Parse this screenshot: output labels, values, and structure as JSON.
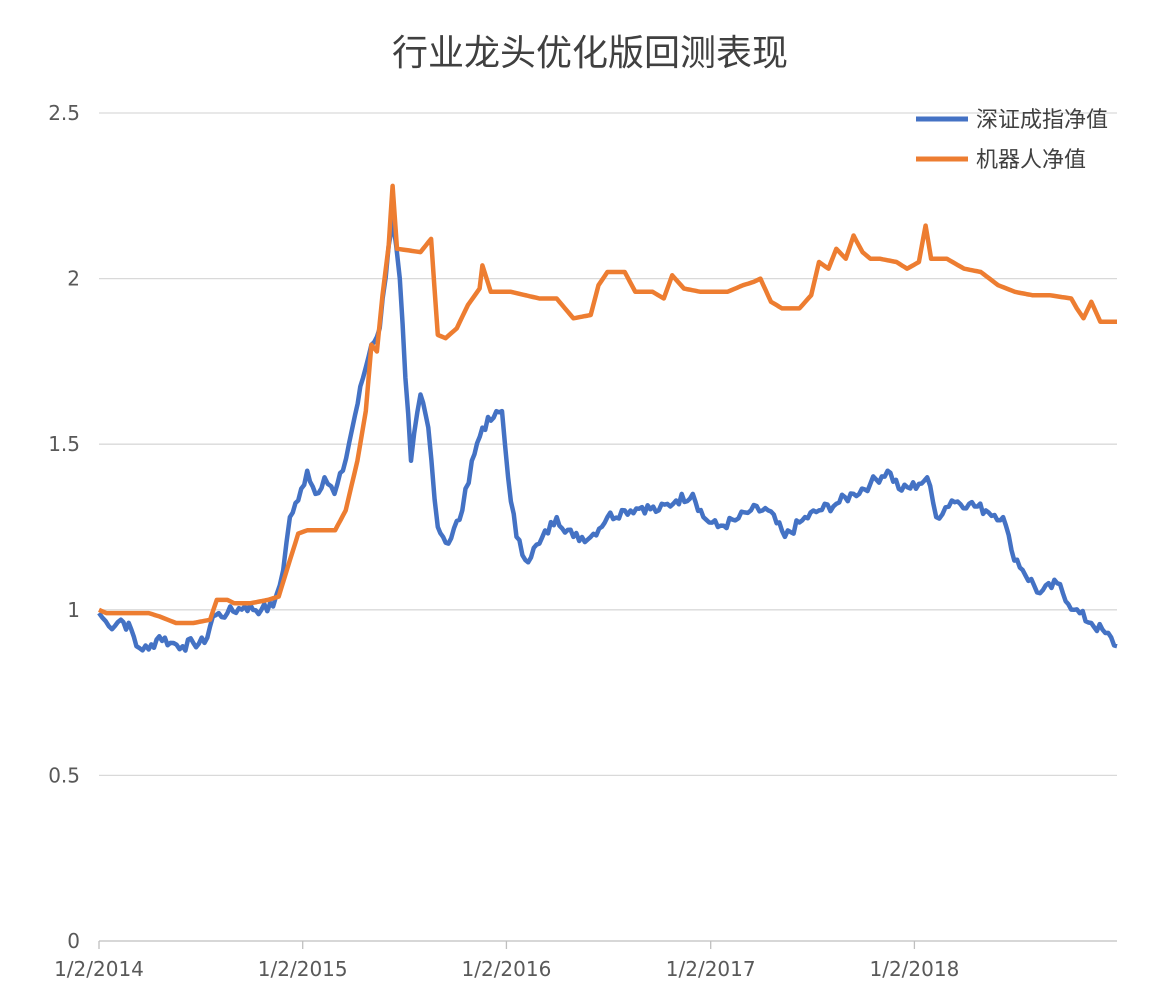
{
  "chart_data": {
    "type": "line",
    "title": "行业龙头优化版回测表现",
    "xlabel": "",
    "ylabel": "",
    "x_range": [
      "2014-01-02",
      "2018-12-31"
    ],
    "x_ticks": [
      "1/2/2014",
      "1/2/2015",
      "1/2/2016",
      "1/2/2017",
      "1/2/2018"
    ],
    "ylim": [
      0,
      2.5
    ],
    "y_ticks": [
      "0",
      "0.5",
      "1",
      "1.5",
      "2",
      "2.5"
    ],
    "grid": true,
    "legend_position": "top-right",
    "series": [
      {
        "name": "深证成指净值",
        "color": "#4472c4",
        "points": [
          [
            "2014-01-02",
            0.99
          ],
          [
            "2014-01-20",
            0.95
          ],
          [
            "2014-02-10",
            0.97
          ],
          [
            "2014-03-01",
            0.94
          ],
          [
            "2014-03-10",
            0.89
          ],
          [
            "2014-04-01",
            0.88
          ],
          [
            "2014-04-20",
            0.92
          ],
          [
            "2014-05-10",
            0.9
          ],
          [
            "2014-06-01",
            0.89
          ],
          [
            "2014-06-20",
            0.9
          ],
          [
            "2014-07-10",
            0.9
          ],
          [
            "2014-07-25",
            0.98
          ],
          [
            "2014-08-20",
            0.99
          ],
          [
            "2014-09-20",
            1.01
          ],
          [
            "2014-10-20",
            1.0
          ],
          [
            "2014-11-10",
            1.01
          ],
          [
            "2014-11-28",
            1.12
          ],
          [
            "2014-12-10",
            1.28
          ],
          [
            "2014-12-25",
            1.33
          ],
          [
            "2015-01-10",
            1.42
          ],
          [
            "2015-01-25",
            1.35
          ],
          [
            "2015-02-10",
            1.4
          ],
          [
            "2015-02-28",
            1.35
          ],
          [
            "2015-03-15",
            1.42
          ],
          [
            "2015-04-01",
            1.55
          ],
          [
            "2015-04-20",
            1.7
          ],
          [
            "2015-05-05",
            1.8
          ],
          [
            "2015-05-20",
            1.85
          ],
          [
            "2015-06-05",
            2.1
          ],
          [
            "2015-06-12",
            2.18
          ],
          [
            "2015-06-25",
            2.0
          ],
          [
            "2015-07-05",
            1.7
          ],
          [
            "2015-07-15",
            1.45
          ],
          [
            "2015-08-01",
            1.65
          ],
          [
            "2015-08-15",
            1.55
          ],
          [
            "2015-09-01",
            1.25
          ],
          [
            "2015-09-20",
            1.2
          ],
          [
            "2015-10-15",
            1.3
          ],
          [
            "2015-11-01",
            1.45
          ],
          [
            "2015-11-20",
            1.55
          ],
          [
            "2015-12-10",
            1.58
          ],
          [
            "2015-12-25",
            1.6
          ],
          [
            "2016-01-05",
            1.4
          ],
          [
            "2016-01-20",
            1.22
          ],
          [
            "2016-02-05",
            1.15
          ],
          [
            "2016-03-01",
            1.2
          ],
          [
            "2016-04-01",
            1.28
          ],
          [
            "2016-05-01",
            1.22
          ],
          [
            "2016-06-01",
            1.22
          ],
          [
            "2016-07-01",
            1.28
          ],
          [
            "2016-08-01",
            1.3
          ],
          [
            "2016-09-01",
            1.31
          ],
          [
            "2016-10-01",
            1.3
          ],
          [
            "2016-11-01",
            1.33
          ],
          [
            "2016-12-01",
            1.35
          ],
          [
            "2016-12-20",
            1.28
          ],
          [
            "2017-01-15",
            1.25
          ],
          [
            "2017-02-15",
            1.27
          ],
          [
            "2017-03-15",
            1.3
          ],
          [
            "2017-04-15",
            1.3
          ],
          [
            "2017-05-15",
            1.22
          ],
          [
            "2017-06-15",
            1.27
          ],
          [
            "2017-07-15",
            1.3
          ],
          [
            "2017-08-15",
            1.32
          ],
          [
            "2017-09-15",
            1.35
          ],
          [
            "2017-10-15",
            1.38
          ],
          [
            "2017-11-15",
            1.42
          ],
          [
            "2017-12-10",
            1.36
          ],
          [
            "2018-01-10",
            1.38
          ],
          [
            "2018-01-25",
            1.4
          ],
          [
            "2018-02-10",
            1.28
          ],
          [
            "2018-03-10",
            1.33
          ],
          [
            "2018-04-10",
            1.32
          ],
          [
            "2018-05-10",
            1.3
          ],
          [
            "2018-06-10",
            1.28
          ],
          [
            "2018-06-25",
            1.18
          ],
          [
            "2018-07-15",
            1.12
          ],
          [
            "2018-08-15",
            1.05
          ],
          [
            "2018-09-15",
            1.08
          ],
          [
            "2018-10-15",
            1.0
          ],
          [
            "2018-11-15",
            0.96
          ],
          [
            "2018-12-10",
            0.93
          ],
          [
            "2018-12-31",
            0.89
          ]
        ]
      },
      {
        "name": "机器人净值",
        "color": "#ed7d31",
        "points": [
          [
            "2014-01-02",
            1.0
          ],
          [
            "2014-01-15",
            0.99
          ],
          [
            "2014-04-01",
            0.99
          ],
          [
            "2014-04-20",
            0.98
          ],
          [
            "2014-05-20",
            0.96
          ],
          [
            "2014-06-20",
            0.96
          ],
          [
            "2014-07-20",
            0.97
          ],
          [
            "2014-08-01",
            1.03
          ],
          [
            "2014-08-20",
            1.03
          ],
          [
            "2014-09-01",
            1.02
          ],
          [
            "2014-10-01",
            1.02
          ],
          [
            "2014-11-01",
            1.03
          ],
          [
            "2014-11-20",
            1.04
          ],
          [
            "2014-12-10",
            1.15
          ],
          [
            "2014-12-25",
            1.23
          ],
          [
            "2015-01-10",
            1.24
          ],
          [
            "2015-03-01",
            1.24
          ],
          [
            "2015-03-20",
            1.3
          ],
          [
            "2015-04-10",
            1.45
          ],
          [
            "2015-04-25",
            1.6
          ],
          [
            "2015-05-05",
            1.8
          ],
          [
            "2015-05-15",
            1.78
          ],
          [
            "2015-05-25",
            1.95
          ],
          [
            "2015-06-05",
            2.1
          ],
          [
            "2015-06-12",
            2.28
          ],
          [
            "2015-06-20",
            2.09
          ],
          [
            "2015-08-01",
            2.08
          ],
          [
            "2015-08-20",
            2.12
          ],
          [
            "2015-09-01",
            1.83
          ],
          [
            "2015-09-15",
            1.82
          ],
          [
            "2015-10-05",
            1.85
          ],
          [
            "2015-10-25",
            1.92
          ],
          [
            "2015-11-15",
            1.97
          ],
          [
            "2015-11-20",
            2.04
          ],
          [
            "2015-12-05",
            1.96
          ],
          [
            "2016-01-10",
            1.96
          ],
          [
            "2016-03-01",
            1.94
          ],
          [
            "2016-04-01",
            1.94
          ],
          [
            "2016-05-01",
            1.88
          ],
          [
            "2016-06-01",
            1.89
          ],
          [
            "2016-06-15",
            1.98
          ],
          [
            "2016-07-01",
            2.02
          ],
          [
            "2016-08-01",
            2.02
          ],
          [
            "2016-08-20",
            1.96
          ],
          [
            "2016-09-20",
            1.96
          ],
          [
            "2016-10-10",
            1.94
          ],
          [
            "2016-10-25",
            2.01
          ],
          [
            "2016-11-15",
            1.97
          ],
          [
            "2016-12-15",
            1.96
          ],
          [
            "2017-02-01",
            1.96
          ],
          [
            "2017-03-01",
            1.98
          ],
          [
            "2017-03-20",
            1.99
          ],
          [
            "2017-04-01",
            2.0
          ],
          [
            "2017-04-20",
            1.93
          ],
          [
            "2017-05-10",
            1.91
          ],
          [
            "2017-06-10",
            1.91
          ],
          [
            "2017-07-01",
            1.95
          ],
          [
            "2017-07-15",
            2.05
          ],
          [
            "2017-08-01",
            2.03
          ],
          [
            "2017-08-15",
            2.09
          ],
          [
            "2017-09-01",
            2.06
          ],
          [
            "2017-09-15",
            2.13
          ],
          [
            "2017-10-01",
            2.08
          ],
          [
            "2017-10-15",
            2.06
          ],
          [
            "2017-11-01",
            2.06
          ],
          [
            "2017-12-01",
            2.05
          ],
          [
            "2017-12-20",
            2.03
          ],
          [
            "2018-01-10",
            2.05
          ],
          [
            "2018-01-22",
            2.16
          ],
          [
            "2018-02-01",
            2.06
          ],
          [
            "2018-03-01",
            2.06
          ],
          [
            "2018-04-01",
            2.03
          ],
          [
            "2018-05-01",
            2.02
          ],
          [
            "2018-06-01",
            1.98
          ],
          [
            "2018-07-01",
            1.96
          ],
          [
            "2018-08-01",
            1.95
          ],
          [
            "2018-09-01",
            1.95
          ],
          [
            "2018-10-10",
            1.94
          ],
          [
            "2018-10-20",
            1.91
          ],
          [
            "2018-11-01",
            1.88
          ],
          [
            "2018-11-15",
            1.93
          ],
          [
            "2018-12-01",
            1.87
          ],
          [
            "2018-12-31",
            1.87
          ]
        ]
      }
    ]
  }
}
